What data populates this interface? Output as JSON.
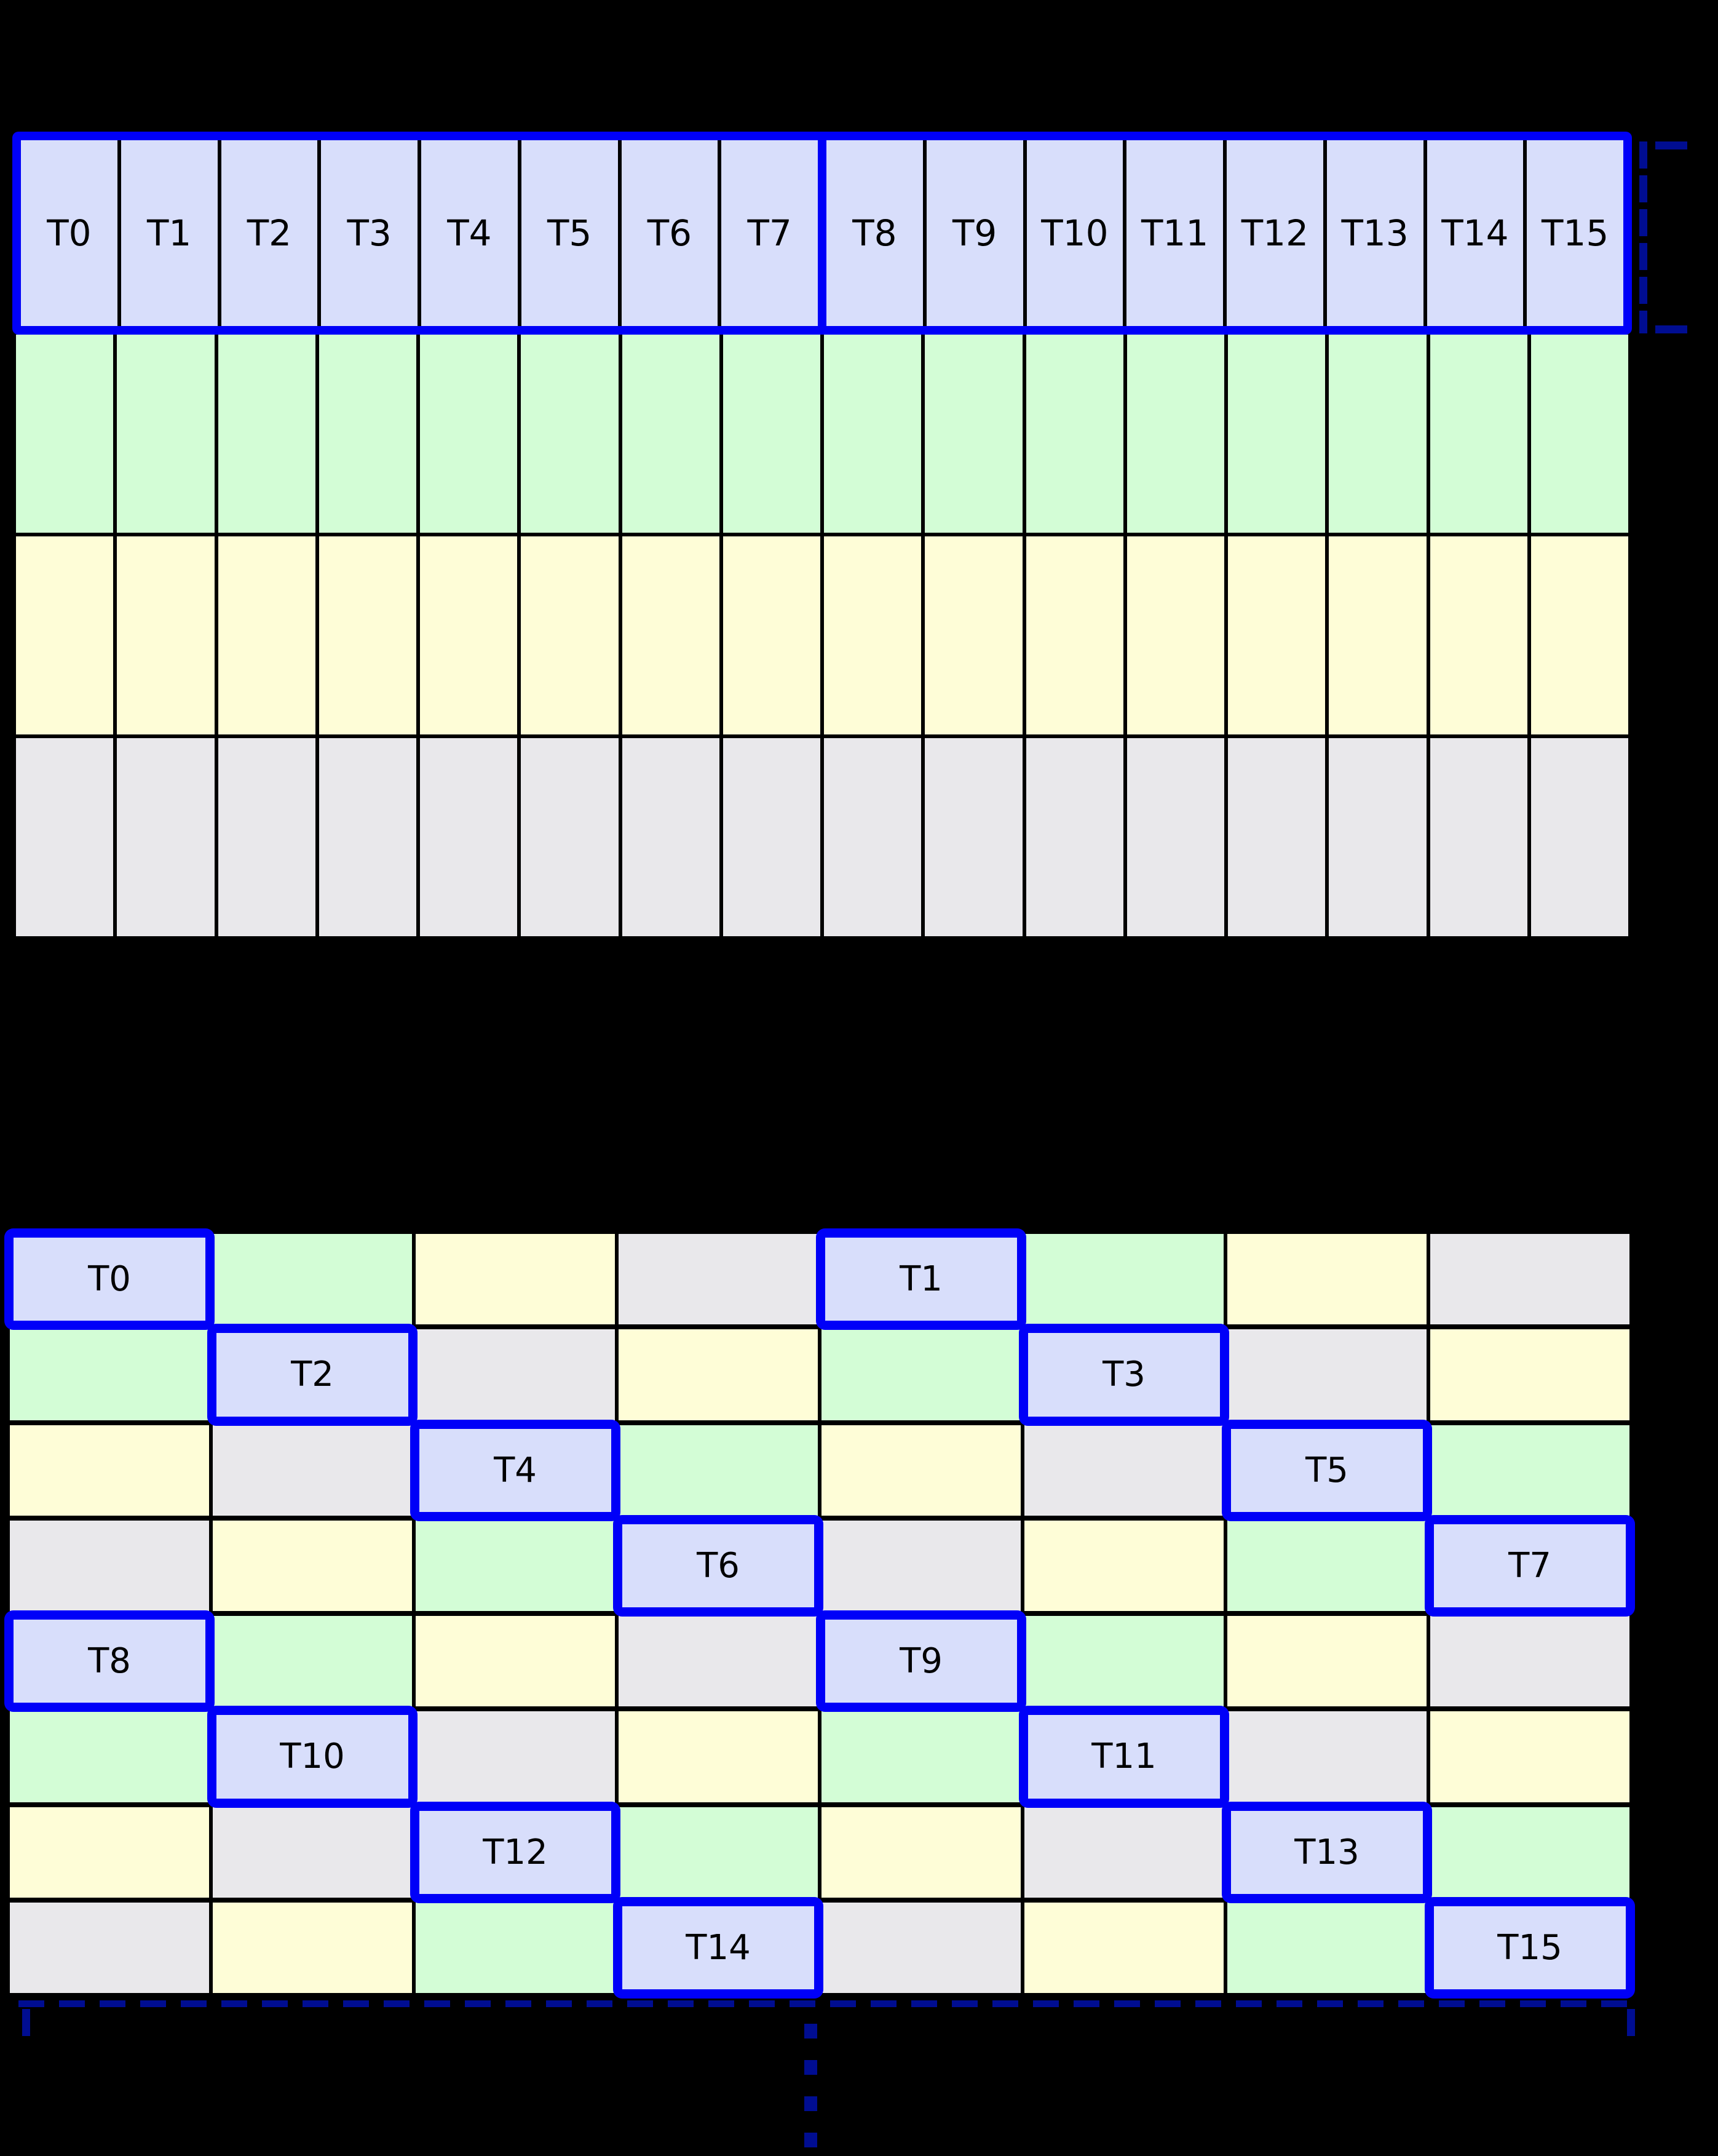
{
  "palette": {
    "thread_fill": "#d8defb",
    "green_fill": "#d3fdd6",
    "yellow_fill": "#fefdd7",
    "gray_fill": "#e9e8eb",
    "highlight_blue": "#0000f8",
    "bracket_navy": "#000d91",
    "grid_line": "#000000",
    "background": "#000000"
  },
  "grid1": {
    "columns": 16,
    "half_split_index": 8,
    "thread_labels": [
      "T0",
      "T1",
      "T2",
      "T3",
      "T4",
      "T5",
      "T6",
      "T7",
      "T8",
      "T9",
      "T10",
      "T11",
      "T12",
      "T13",
      "T14",
      "T15"
    ],
    "data_rows": [
      {
        "name": "grid1-green-row",
        "color_key": "green_fill"
      },
      {
        "name": "grid1-yellow-row",
        "color_key": "yellow_fill"
      },
      {
        "name": "grid1-gray-row",
        "color_key": "gray_fill"
      }
    ]
  },
  "grid2": {
    "columns": 8,
    "rows": [
      [
        {
          "color": "thread",
          "label": "T0"
        },
        {
          "color": "green"
        },
        {
          "color": "yellow"
        },
        {
          "color": "gray"
        },
        {
          "color": "thread",
          "label": "T1"
        },
        {
          "color": "green"
        },
        {
          "color": "yellow"
        },
        {
          "color": "gray"
        }
      ],
      [
        {
          "color": "green"
        },
        {
          "color": "thread",
          "label": "T2"
        },
        {
          "color": "gray"
        },
        {
          "color": "yellow"
        },
        {
          "color": "green"
        },
        {
          "color": "thread",
          "label": "T3"
        },
        {
          "color": "gray"
        },
        {
          "color": "yellow"
        }
      ],
      [
        {
          "color": "yellow"
        },
        {
          "color": "gray"
        },
        {
          "color": "thread",
          "label": "T4"
        },
        {
          "color": "green"
        },
        {
          "color": "yellow"
        },
        {
          "color": "gray"
        },
        {
          "color": "thread",
          "label": "T5"
        },
        {
          "color": "green"
        }
      ],
      [
        {
          "color": "gray"
        },
        {
          "color": "yellow"
        },
        {
          "color": "green"
        },
        {
          "color": "thread",
          "label": "T6"
        },
        {
          "color": "gray"
        },
        {
          "color": "yellow"
        },
        {
          "color": "green"
        },
        {
          "color": "thread",
          "label": "T7"
        }
      ],
      [
        {
          "color": "thread",
          "label": "T8"
        },
        {
          "color": "green"
        },
        {
          "color": "yellow"
        },
        {
          "color": "gray"
        },
        {
          "color": "thread",
          "label": "T9"
        },
        {
          "color": "green"
        },
        {
          "color": "yellow"
        },
        {
          "color": "gray"
        }
      ],
      [
        {
          "color": "green"
        },
        {
          "color": "thread",
          "label": "T10"
        },
        {
          "color": "gray"
        },
        {
          "color": "yellow"
        },
        {
          "color": "green"
        },
        {
          "color": "thread",
          "label": "T11"
        },
        {
          "color": "gray"
        },
        {
          "color": "yellow"
        }
      ],
      [
        {
          "color": "yellow"
        },
        {
          "color": "gray"
        },
        {
          "color": "thread",
          "label": "T12"
        },
        {
          "color": "green"
        },
        {
          "color": "yellow"
        },
        {
          "color": "gray"
        },
        {
          "color": "thread",
          "label": "T13"
        },
        {
          "color": "green"
        }
      ],
      [
        {
          "color": "gray"
        },
        {
          "color": "yellow"
        },
        {
          "color": "green"
        },
        {
          "color": "thread",
          "label": "T14"
        },
        {
          "color": "gray"
        },
        {
          "color": "yellow"
        },
        {
          "color": "green"
        },
        {
          "color": "thread",
          "label": "T15"
        }
      ]
    ]
  },
  "annotations": {
    "ellipsis_dot_count": 4
  }
}
